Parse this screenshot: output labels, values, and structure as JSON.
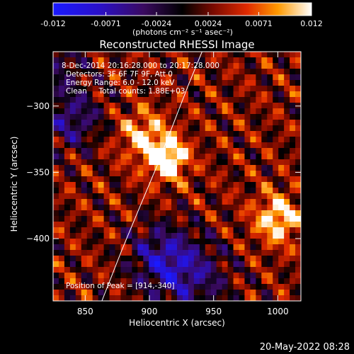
{
  "chart_data": {
    "type": "heatmap",
    "title": "Reconstructed RHESSI Image",
    "xlabel": "Heliocentric X (arcsec)",
    "ylabel": "Heliocentric Y (arcsec)",
    "xlim": [
      825,
      1018
    ],
    "ylim": [
      -447,
      -259
    ],
    "xticks": [
      850,
      900,
      950,
      1000
    ],
    "yticks": [
      -300,
      -350,
      -400
    ],
    "colorbar": {
      "ticks": [
        "-0.012",
        "-0.0071",
        "-0.0024",
        "0.0024",
        "0.0071",
        "0.012"
      ],
      "range": [
        -0.012,
        0.012
      ],
      "units": "(photons cm⁻² s⁻¹ asec⁻²)"
    },
    "annotations": [
      "8-Dec-2014 20:16:28.000 to 20:17:28.000",
      "Detectors: 3F 6F 7F 9F, Att 0",
      "Energy Range: 6.0 - 12.0 keV",
      "Clean     Total counts: 1.88E+03"
    ],
    "peak_label": "Position of Peak = [914,-340]",
    "peak": {
      "x": 914,
      "y": -340,
      "value": 0.012
    },
    "secondary_sources": [
      {
        "x": 1000,
        "y": -385,
        "value": 0.009
      },
      {
        "x": 895,
        "y": -322,
        "value": 0.007
      }
    ],
    "limb": [
      [
        863,
        -447
      ],
      [
        878,
        -410
      ],
      [
        893,
        -375
      ],
      [
        906,
        -345
      ],
      [
        918,
        -315
      ],
      [
        930,
        -285
      ],
      [
        941,
        -259
      ]
    ]
  },
  "footer": {
    "date": "20-May-2022 08:28"
  }
}
